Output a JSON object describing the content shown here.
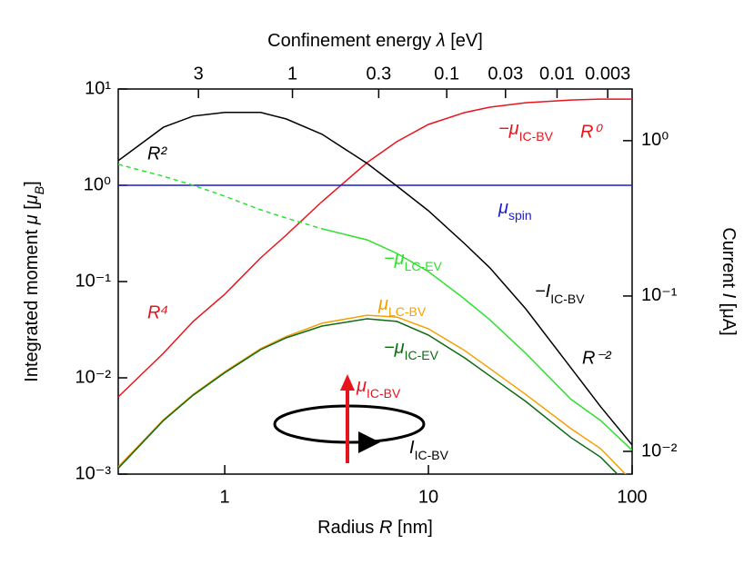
{
  "chart_data": {
    "type": "line",
    "xlabel": [
      "Radius ",
      "R",
      " [nm]"
    ],
    "ylabel": [
      "Integrated moment ",
      "μ",
      " [",
      "μ",
      "B",
      "]"
    ],
    "y2label": [
      "Current ",
      "I",
      " [μA]"
    ],
    "x2": {
      "label": [
        "Confinement energy ",
        "λ",
        " [eV]"
      ],
      "ticks": [
        3,
        1,
        0.3,
        0.1,
        0.03,
        0.01,
        0.003
      ],
      "tick_positions_R": [
        0.743,
        2.15,
        5.7,
        12.3,
        23.9,
        42.8,
        75.9
      ]
    },
    "log_x": true,
    "log_y": true,
    "xlim": [
      0.3,
      100
    ],
    "xticks": [
      1,
      10,
      100
    ],
    "ylim": [
      0.001,
      10
    ],
    "yticks": [
      {
        "value": 10,
        "label": "10¹"
      },
      {
        "value": 1,
        "label": "10⁰"
      },
      {
        "value": 0.1,
        "label": "10⁻¹"
      },
      {
        "value": 0.01,
        "label": "10⁻²"
      },
      {
        "value": 0.001,
        "label": "10⁻³"
      }
    ],
    "y2lim": [
      0.00714,
      2.15
    ],
    "y2ticks": [
      {
        "value": 1,
        "label": "10⁰"
      },
      {
        "value": 0.1,
        "label": "10⁻¹"
      },
      {
        "value": 0.01,
        "label": "10⁻²"
      }
    ],
    "x": [
      0.3,
      0.5,
      0.7,
      1,
      1.5,
      2,
      3,
      5,
      7,
      10,
      15,
      20,
      30,
      50,
      70,
      100
    ],
    "series": [
      {
        "name": [
          "−μ",
          "IC-BV"
        ],
        "color": "#e8141c",
        "values": [
          0.00634,
          0.018,
          0.0385,
          0.0738,
          0.176,
          0.303,
          0.676,
          1.72,
          2.84,
          4.29,
          5.69,
          6.47,
          7.21,
          7.69,
          7.86,
          7.86
        ]
      },
      {
        "name": [
          "μ",
          "spin"
        ],
        "color": "#1c1cd8",
        "values": [
          1,
          1,
          1,
          1,
          1,
          1,
          1,
          1,
          1,
          1,
          1,
          1,
          1,
          1,
          1,
          1
        ]
      },
      {
        "name": [
          "−μ",
          "LC-EV"
        ],
        "color": "#2ee02e",
        "dashed_below_x": 3,
        "values": [
          1.65,
          1.24,
          1.0,
          0.77,
          0.556,
          0.457,
          0.353,
          0.271,
          0.196,
          0.127,
          0.0662,
          0.0401,
          0.018,
          0.006,
          0.0036,
          0.00177
        ]
      },
      {
        "name": [
          "μ",
          "LC-BV"
        ],
        "color": "#f5a000",
        "values": [
          0.00119,
          0.00368,
          0.00674,
          0.0116,
          0.0201,
          0.0268,
          0.0369,
          0.0447,
          0.0428,
          0.0323,
          0.0193,
          0.0125,
          0.00674,
          0.00297,
          0.00184,
          0.00085
        ]
      },
      {
        "name": [
          "−μ",
          "IC-EV"
        ],
        "color": "#0e6a12",
        "values": [
          0.00115,
          0.0036,
          0.0066,
          0.0113,
          0.0196,
          0.026,
          0.0345,
          0.041,
          0.0385,
          0.0278,
          0.0162,
          0.0105,
          0.0057,
          0.0024,
          0.0015,
          0.0007
        ]
      },
      {
        "name": [
          "−I",
          "IC-BV"
        ],
        "color": "#000000",
        "axis": "y2",
        "values": [
          0.743,
          1.22,
          1.44,
          1.52,
          1.52,
          1.38,
          1.1,
          0.714,
          0.51,
          0.354,
          0.218,
          0.152,
          0.0828,
          0.0346,
          0.0194,
          0.011
        ]
      }
    ],
    "annotations": [
      {
        "text": "R²",
        "color": "#000000"
      },
      {
        "text": "R⁰",
        "color": "#e8141c"
      },
      {
        "text": "R⁴",
        "color": "#e8141c"
      },
      {
        "text": "R⁻²",
        "color": "#000000"
      }
    ],
    "diagram_labels": [
      {
        "text": [
          "μ",
          "IC-BV"
        ],
        "color": "#e8141c"
      },
      {
        "text": [
          "I",
          "IC-BV"
        ],
        "color": "#000000"
      }
    ]
  }
}
